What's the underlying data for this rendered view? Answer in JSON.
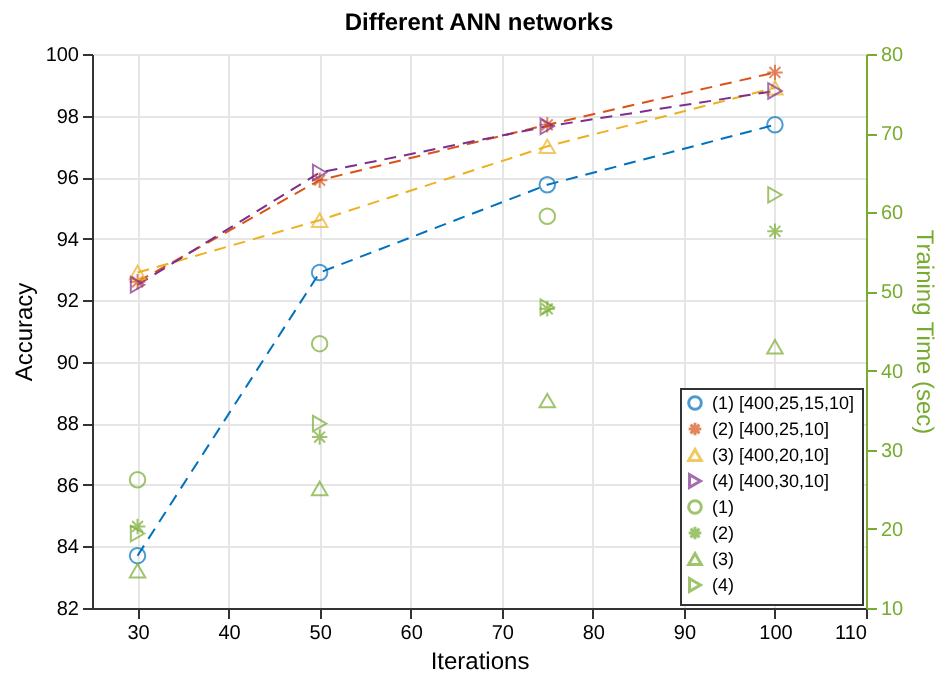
{
  "chart_data": {
    "type": "line",
    "title": "Different ANN networks",
    "xlabel": "Iterations",
    "ylabel": "Accuracy",
    "y2label": "Training Time (sec)",
    "x": [
      30,
      50,
      75,
      100
    ],
    "series": [
      {
        "name": "(1) [400,25,15,10]",
        "color": "#0072bd",
        "marker": "circle",
        "line_style": "dashed",
        "values": [
          83.7,
          92.9,
          95.75,
          97.7
        ]
      },
      {
        "name": "(2) [400,25,10]",
        "color": "#d95319",
        "marker": "cross",
        "line_style": "dashed",
        "values": [
          92.6,
          95.9,
          97.7,
          99.4
        ]
      },
      {
        "name": "(3) [400,20,10]",
        "color": "#edb120",
        "marker": "triangle",
        "line_style": "dashed",
        "values": [
          92.9,
          94.6,
          97.0,
          98.9
        ]
      },
      {
        "name": "(4) [400,30,10]",
        "color": "#7e2f8e",
        "marker": "triangle-right",
        "line_style": "dashed",
        "values": [
          92.5,
          96.15,
          97.65,
          98.8
        ]
      },
      {
        "name": "(1)",
        "type": "scatter",
        "axis": "y2",
        "color": "#77ac30",
        "marker": "circle",
        "values": [
          26.2,
          43.4,
          59.5,
          null
        ]
      },
      {
        "name": "(2)",
        "type": "scatter",
        "axis": "y2",
        "color": "#77ac30",
        "marker": "cross",
        "values": [
          20.3,
          31.6,
          47.8,
          57.6
        ]
      },
      {
        "name": "(3)",
        "type": "scatter",
        "axis": "y2",
        "color": "#77ac30",
        "marker": "triangle",
        "values": [
          14.7,
          25.1,
          36.2,
          43.0
        ]
      },
      {
        "name": "(4)",
        "type": "scatter",
        "axis": "y2",
        "color": "#77ac30",
        "marker": "triangle-right",
        "values": [
          19.4,
          33.3,
          48.0,
          62.2
        ]
      }
    ],
    "xlim": [
      25,
      110
    ],
    "xticks": [
      30,
      40,
      50,
      60,
      70,
      80,
      90,
      100,
      110
    ],
    "ylim": [
      82,
      100
    ],
    "yticks": [
      82,
      84,
      86,
      88,
      90,
      92,
      94,
      96,
      98,
      100
    ],
    "y2lim": [
      10,
      80
    ],
    "y2ticks": [
      10,
      20,
      30,
      40,
      50,
      60,
      70,
      80
    ],
    "grid": true,
    "legend": "bottom right"
  }
}
